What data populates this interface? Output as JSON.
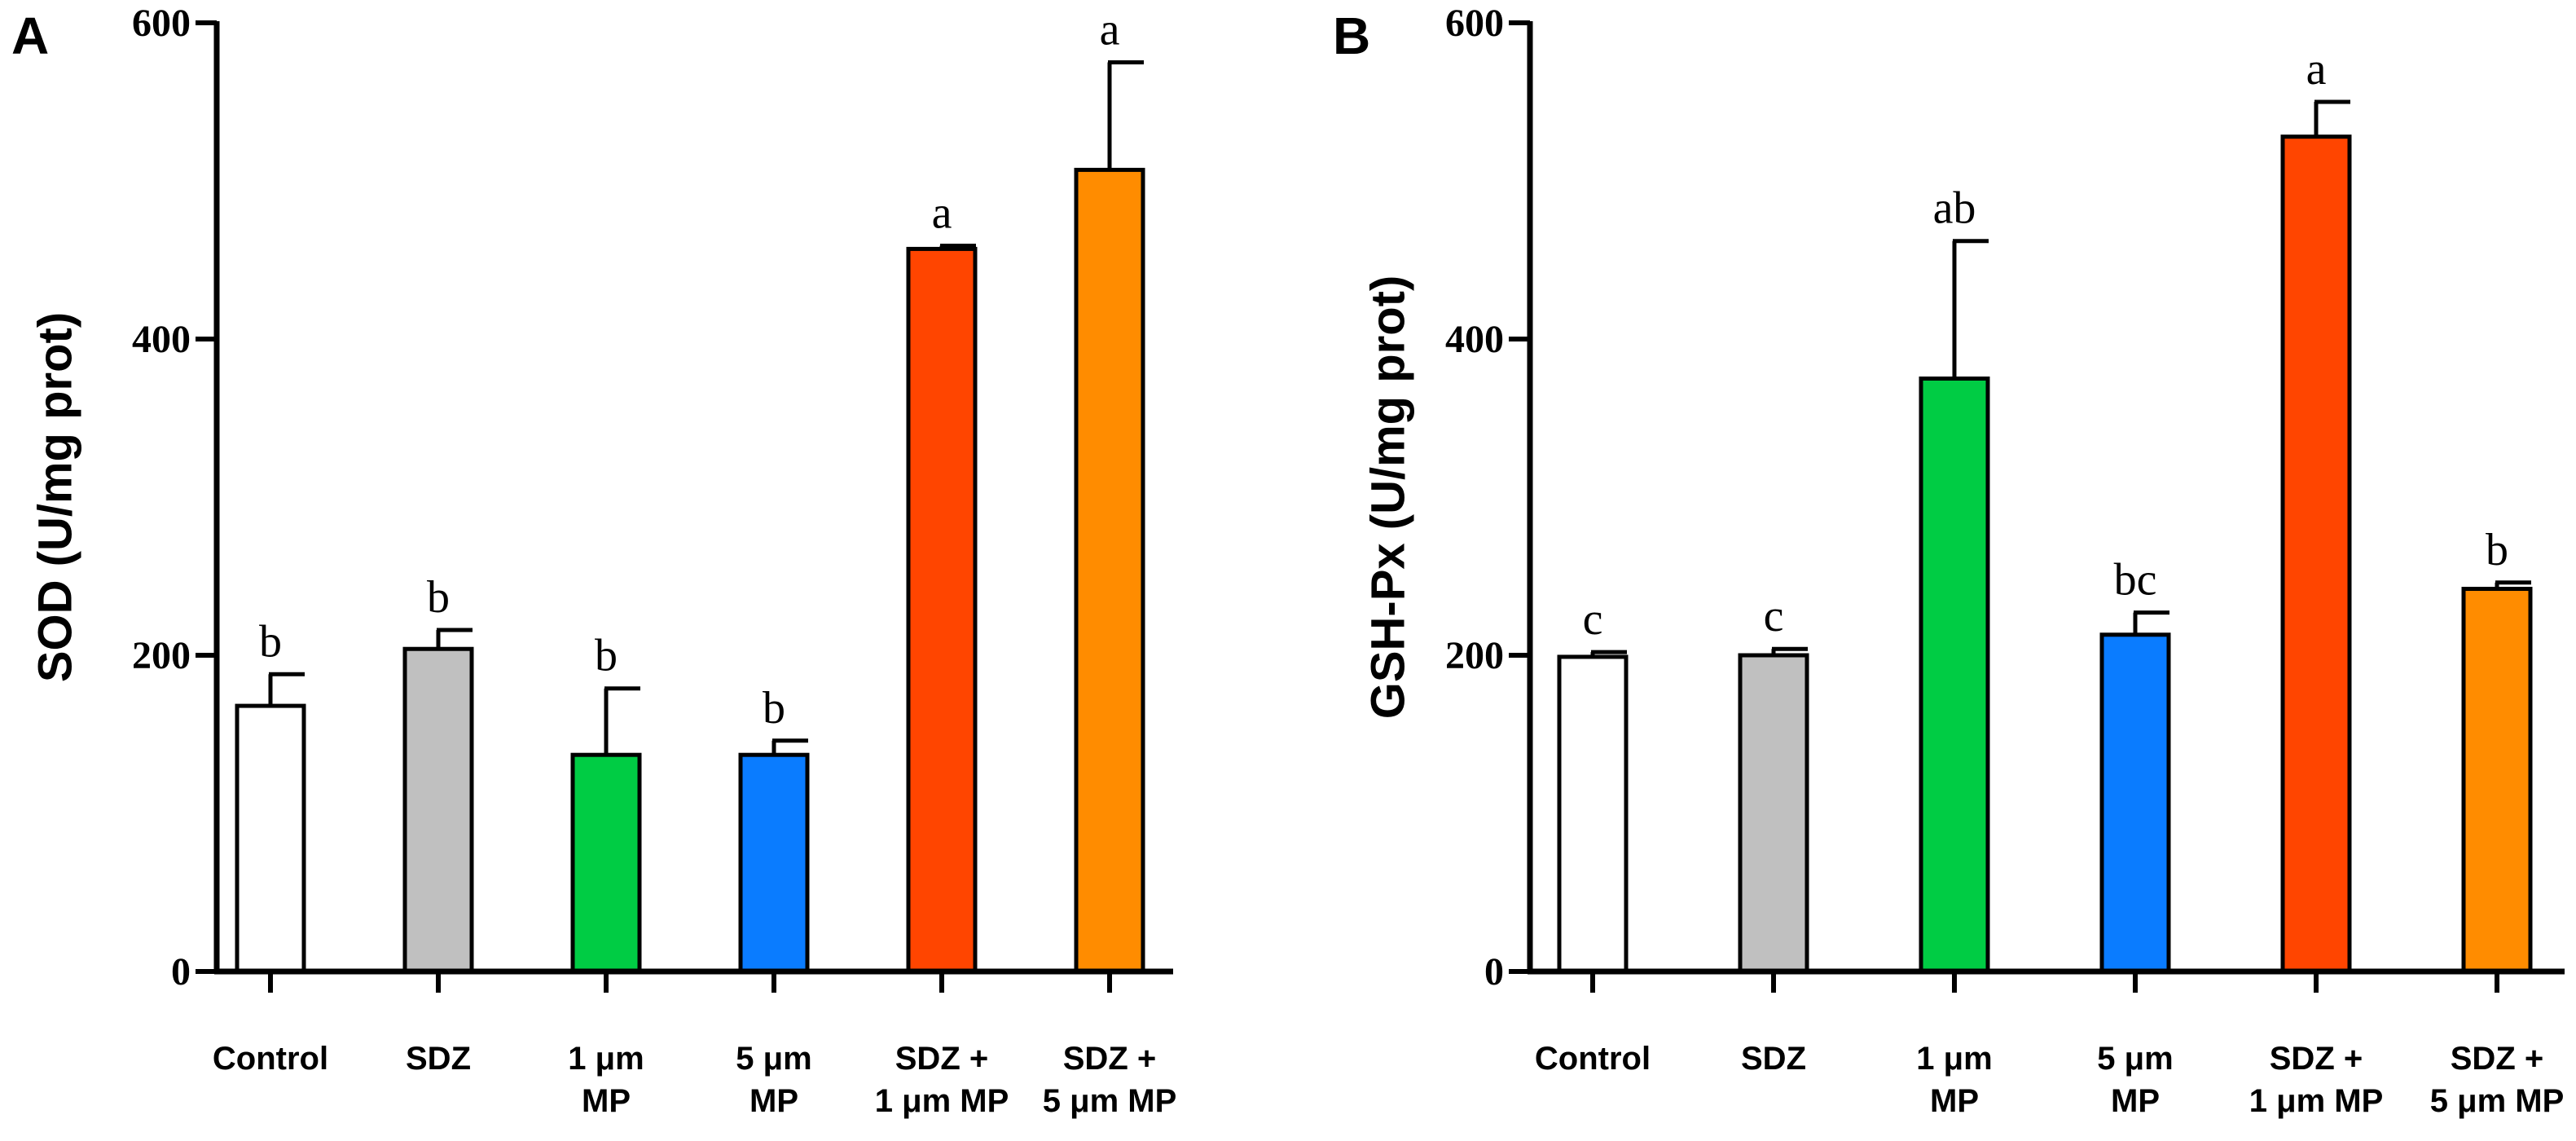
{
  "chart_data": [
    {
      "type": "bar",
      "panel": "A",
      "ylabel": "SOD (U/mg prot)",
      "ylim": [
        0,
        600
      ],
      "yticks": [
        0,
        200,
        400,
        600
      ],
      "categories": [
        [
          "Control"
        ],
        [
          "SDZ"
        ],
        [
          "1 μm",
          "MP"
        ],
        [
          "5 μm",
          "MP"
        ],
        [
          "SDZ +",
          "1 μm MP"
        ],
        [
          "SDZ +",
          "5 μm MP"
        ]
      ],
      "values": [
        168,
        204,
        137,
        137,
        457,
        507
      ],
      "errors": [
        20,
        12,
        42,
        9,
        2,
        68
      ],
      "significance": [
        "b",
        "b",
        "b",
        "b",
        "a",
        "a"
      ],
      "colors": [
        "#ffffff",
        "#c0c0c0",
        "#00cc44",
        "#0a7cff",
        "#ff4500",
        "#ff8c00"
      ]
    },
    {
      "type": "bar",
      "panel": "B",
      "ylabel": "GSH-Px (U/mg prot)",
      "ylim": [
        0,
        600
      ],
      "yticks": [
        0,
        200,
        400,
        600
      ],
      "categories": [
        [
          "Control"
        ],
        [
          "SDZ"
        ],
        [
          "1 μm",
          "MP"
        ],
        [
          "5 μm",
          "MP"
        ],
        [
          "SDZ +",
          "1 μm MP"
        ],
        [
          "SDZ +",
          "5 μm MP"
        ]
      ],
      "values": [
        199,
        200,
        375,
        213,
        528,
        242
      ],
      "errors": [
        3,
        4,
        87,
        14,
        22,
        4
      ],
      "significance": [
        "c",
        "c",
        "ab",
        "bc",
        "a",
        "b"
      ],
      "colors": [
        "#ffffff",
        "#c0c0c0",
        "#00cc44",
        "#0a7cff",
        "#ff4500",
        "#ff8c00"
      ]
    }
  ]
}
